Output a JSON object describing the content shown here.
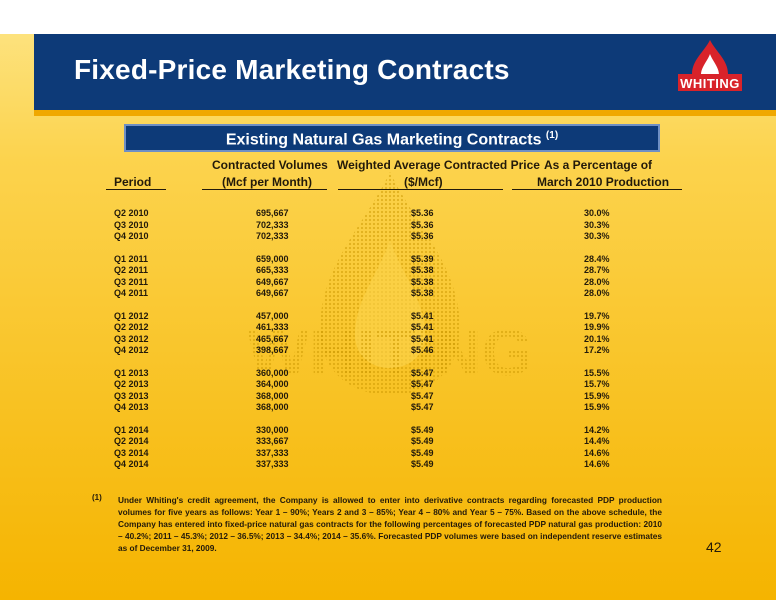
{
  "title": "Fixed-Price Marketing Contracts",
  "logo_text": "WHITING",
  "watermark_text": "WHITING",
  "subtitle": "Existing Natural Gas Marketing Contracts",
  "subtitle_note": "(1)",
  "headers": {
    "volumes_top": "Contracted Volumes",
    "price_top": "Weighted Average Contracted Price",
    "percent_top": "As a Percentage of",
    "period": "Period",
    "volumes": "(Mcf per Month)",
    "price": "($/Mcf)",
    "percent": "March 2010 Production"
  },
  "rows": [
    {
      "period": "Q2 2010",
      "volume": "695,667",
      "price": "$5.36",
      "percent": "30.0%"
    },
    {
      "period": "Q3 2010",
      "volume": "702,333",
      "price": "$5.36",
      "percent": "30.3%"
    },
    {
      "period": "Q4 2010",
      "volume": "702,333",
      "price": "$5.36",
      "percent": "30.3%"
    },
    {
      "period": "Q1 2011",
      "volume": "659,000",
      "price": "$5.39",
      "percent": "28.4%"
    },
    {
      "period": "Q2 2011",
      "volume": "665,333",
      "price": "$5.38",
      "percent": "28.7%"
    },
    {
      "period": "Q3 2011",
      "volume": "649,667",
      "price": "$5.38",
      "percent": "28.0%"
    },
    {
      "period": "Q4 2011",
      "volume": "649,667",
      "price": "$5.38",
      "percent": "28.0%"
    },
    {
      "period": "Q1 2012",
      "volume": "457,000",
      "price": "$5.41",
      "percent": "19.7%"
    },
    {
      "period": "Q2 2012",
      "volume": "461,333",
      "price": "$5.41",
      "percent": "19.9%"
    },
    {
      "period": "Q3 2012",
      "volume": "465,667",
      "price": "$5.41",
      "percent": "20.1%"
    },
    {
      "period": "Q4 2012",
      "volume": "398,667",
      "price": "$5.46",
      "percent": "17.2%"
    },
    {
      "period": "Q1 2013",
      "volume": "360,000",
      "price": "$5.47",
      "percent": "15.5%"
    },
    {
      "period": "Q2 2013",
      "volume": "364,000",
      "price": "$5.47",
      "percent": "15.7%"
    },
    {
      "period": "Q3 2013",
      "volume": "368,000",
      "price": "$5.47",
      "percent": "15.9%"
    },
    {
      "period": "Q4 2013",
      "volume": "368,000",
      "price": "$5.47",
      "percent": "15.9%"
    },
    {
      "period": "Q1 2014",
      "volume": "330,000",
      "price": "$5.49",
      "percent": "14.2%"
    },
    {
      "period": "Q2 2014",
      "volume": "333,667",
      "price": "$5.49",
      "percent": "14.4%"
    },
    {
      "period": "Q3 2014",
      "volume": "337,333",
      "price": "$5.49",
      "percent": "14.6%"
    },
    {
      "period": "Q4 2014",
      "volume": "337,333",
      "price": "$5.49",
      "percent": "14.6%"
    }
  ],
  "footnote_mark": "(1)",
  "footnote": "Under Whiting's credit agreement, the Company is allowed to enter into derivative contracts regarding forecasted PDP production volumes for five years as follows: Year 1 – 90%; Years 2 and 3 – 85%; Year 4 – 80% and Year 5 – 75%. Based on the above schedule, the Company has entered into fixed-price natural gas contracts for the following percentages of forecasted PDP natural gas production: 2010 – 40.2%; 2011 – 45.3%; 2012 – 36.5%; 2013 – 34.4%; 2014 – 35.6%.  Forecasted PDP volumes were based on independent reserve estimates as of December 31, 2009.",
  "page_number": "42",
  "colors": {
    "header_blue": "#0d3a78",
    "gold": "#fcd34d",
    "logo_red": "#d8232a"
  }
}
